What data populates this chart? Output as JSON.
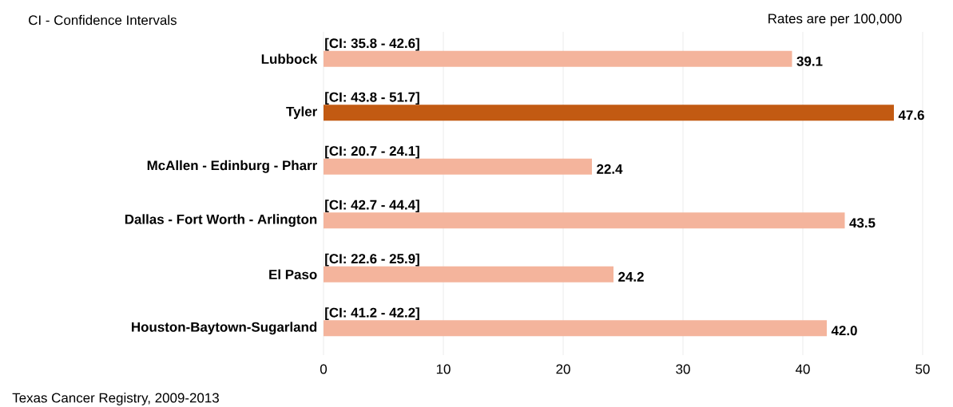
{
  "chart_data": {
    "type": "bar",
    "orientation": "horizontal",
    "categories": [
      "Lubbock",
      "Tyler",
      "McAllen - Edinburg - Pharr",
      "Dallas - Fort Worth - Arlington",
      "El Paso",
      "Houston-Baytown-Sugarland"
    ],
    "values": [
      39.1,
      47.6,
      22.4,
      43.5,
      24.2,
      42.0
    ],
    "value_labels": [
      "39.1",
      "47.6",
      "22.4",
      "43.5",
      "24.2",
      "42.0"
    ],
    "colors": [
      "#f4b49c",
      "#c25a12",
      "#f4b49c",
      "#f4b49c",
      "#f4b49c",
      "#f4b49c"
    ],
    "xlim": [
      0,
      50
    ],
    "xticks": [
      0,
      10,
      20,
      30,
      40,
      50
    ],
    "grid": "x",
    "annotations": [
      "CI - Confidence Intervals",
      "Rates are per 100,000",
      "Texas Cancer Registry, 2009-2013",
      "[CI: 35.8 - 42.6]",
      "[CI: 43.8 - 51.7]",
      "[CI: 20.7 - 24.1]",
      "[CI: 42.7 - 44.4]",
      "[CI: 22.6 - 25.9]",
      "[CI: 41.2 - 42.2]"
    ]
  }
}
